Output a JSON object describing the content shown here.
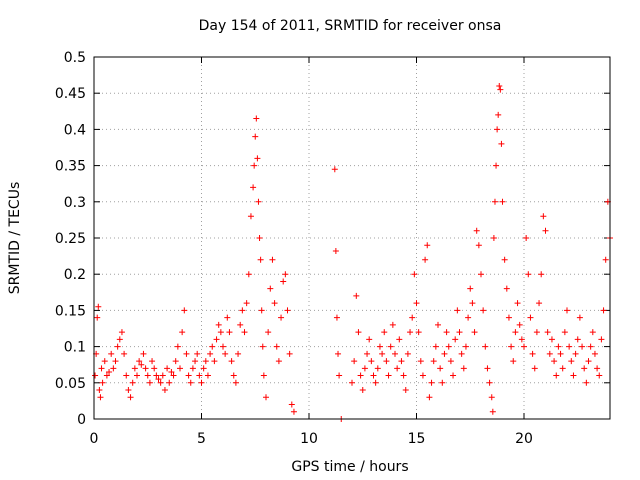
{
  "chart_data": {
    "type": "scatter",
    "title": "Day 154 of 2011, SRMTID for receiver onsa",
    "xlabel": "GPS time / hours",
    "ylabel": "SRMTID / TECUs",
    "xlim": [
      0,
      24
    ],
    "ylim": [
      0,
      0.5
    ],
    "xticks": [
      0,
      5,
      10,
      15,
      20
    ],
    "xtick_labels": [
      "0",
      "5",
      "10",
      "15",
      "20"
    ],
    "yticks": [
      0,
      0.05,
      0.1,
      0.15,
      0.2,
      0.25,
      0.3,
      0.35,
      0.4,
      0.45,
      0.5
    ],
    "ytick_labels": [
      "0",
      "0.05",
      "0.1",
      "0.15",
      "0.2",
      "0.25",
      "0.3",
      "0.35",
      "0.4",
      "0.45",
      "0.5"
    ],
    "grid": true,
    "marker": "+",
    "color": "#ff0000",
    "series": [
      {
        "name": "SRMTID",
        "points": [
          [
            0.05,
            0.06
          ],
          [
            0.1,
            0.09
          ],
          [
            0.15,
            0.14
          ],
          [
            0.2,
            0.155
          ],
          [
            0.25,
            0.04
          ],
          [
            0.3,
            0.03
          ],
          [
            0.35,
            0.07
          ],
          [
            0.4,
            0.05
          ],
          [
            0.5,
            0.08
          ],
          [
            0.6,
            0.06
          ],
          [
            0.7,
            0.065
          ],
          [
            0.8,
            0.09
          ],
          [
            0.9,
            0.07
          ],
          [
            1.0,
            0.08
          ],
          [
            1.1,
            0.1
          ],
          [
            1.2,
            0.11
          ],
          [
            1.3,
            0.12
          ],
          [
            1.4,
            0.09
          ],
          [
            1.5,
            0.06
          ],
          [
            1.6,
            0.04
          ],
          [
            1.7,
            0.03
          ],
          [
            1.8,
            0.05
          ],
          [
            1.9,
            0.07
          ],
          [
            2.0,
            0.06
          ],
          [
            2.1,
            0.08
          ],
          [
            2.2,
            0.075
          ],
          [
            2.3,
            0.09
          ],
          [
            2.4,
            0.07
          ],
          [
            2.5,
            0.06
          ],
          [
            2.6,
            0.05
          ],
          [
            2.7,
            0.08
          ],
          [
            2.8,
            0.07
          ],
          [
            2.9,
            0.06
          ],
          [
            3.0,
            0.055
          ],
          [
            3.1,
            0.05
          ],
          [
            3.2,
            0.06
          ],
          [
            3.3,
            0.04
          ],
          [
            3.4,
            0.07
          ],
          [
            3.5,
            0.05
          ],
          [
            3.6,
            0.065
          ],
          [
            3.7,
            0.06
          ],
          [
            3.8,
            0.08
          ],
          [
            3.9,
            0.1
          ],
          [
            4.0,
            0.07
          ],
          [
            4.1,
            0.12
          ],
          [
            4.2,
            0.15
          ],
          [
            4.3,
            0.09
          ],
          [
            4.4,
            0.06
          ],
          [
            4.5,
            0.05
          ],
          [
            4.6,
            0.07
          ],
          [
            4.7,
            0.08
          ],
          [
            4.8,
            0.09
          ],
          [
            4.9,
            0.06
          ],
          [
            5.0,
            0.05
          ],
          [
            5.1,
            0.07
          ],
          [
            5.2,
            0.08
          ],
          [
            5.3,
            0.06
          ],
          [
            5.4,
            0.09
          ],
          [
            5.5,
            0.1
          ],
          [
            5.6,
            0.08
          ],
          [
            5.7,
            0.11
          ],
          [
            5.8,
            0.13
          ],
          [
            5.9,
            0.12
          ],
          [
            6.0,
            0.1
          ],
          [
            6.1,
            0.09
          ],
          [
            6.2,
            0.14
          ],
          [
            6.3,
            0.12
          ],
          [
            6.4,
            0.08
          ],
          [
            6.5,
            0.06
          ],
          [
            6.6,
            0.05
          ],
          [
            6.7,
            0.09
          ],
          [
            6.8,
            0.13
          ],
          [
            6.9,
            0.15
          ],
          [
            7.0,
            0.12
          ],
          [
            7.1,
            0.16
          ],
          [
            7.2,
            0.2
          ],
          [
            7.3,
            0.28
          ],
          [
            7.4,
            0.32
          ],
          [
            7.45,
            0.35
          ],
          [
            7.5,
            0.39
          ],
          [
            7.55,
            0.415
          ],
          [
            7.6,
            0.36
          ],
          [
            7.65,
            0.3
          ],
          [
            7.7,
            0.25
          ],
          [
            7.75,
            0.22
          ],
          [
            7.8,
            0.15
          ],
          [
            7.85,
            0.1
          ],
          [
            7.9,
            0.06
          ],
          [
            8.0,
            0.03
          ],
          [
            8.1,
            0.12
          ],
          [
            8.2,
            0.18
          ],
          [
            8.3,
            0.22
          ],
          [
            8.4,
            0.16
          ],
          [
            8.5,
            0.1
          ],
          [
            8.6,
            0.08
          ],
          [
            8.7,
            0.14
          ],
          [
            8.8,
            0.19
          ],
          [
            8.9,
            0.2
          ],
          [
            9.0,
            0.15
          ],
          [
            9.1,
            0.09
          ],
          [
            9.2,
            0.02
          ],
          [
            9.3,
            0.01
          ],
          [
            11.2,
            0.345
          ],
          [
            11.25,
            0.232
          ],
          [
            11.3,
            0.14
          ],
          [
            11.35,
            0.09
          ],
          [
            11.4,
            0.06
          ],
          [
            11.5,
            0.0
          ],
          [
            12.0,
            0.05
          ],
          [
            12.1,
            0.08
          ],
          [
            12.2,
            0.17
          ],
          [
            12.3,
            0.12
          ],
          [
            12.4,
            0.06
          ],
          [
            12.5,
            0.04
          ],
          [
            12.6,
            0.07
          ],
          [
            12.7,
            0.09
          ],
          [
            12.8,
            0.11
          ],
          [
            12.9,
            0.08
          ],
          [
            13.0,
            0.06
          ],
          [
            13.1,
            0.05
          ],
          [
            13.2,
            0.07
          ],
          [
            13.3,
            0.1
          ],
          [
            13.4,
            0.09
          ],
          [
            13.5,
            0.12
          ],
          [
            13.6,
            0.08
          ],
          [
            13.7,
            0.06
          ],
          [
            13.8,
            0.1
          ],
          [
            13.9,
            0.13
          ],
          [
            14.0,
            0.09
          ],
          [
            14.1,
            0.07
          ],
          [
            14.2,
            0.11
          ],
          [
            14.3,
            0.08
          ],
          [
            14.4,
            0.06
          ],
          [
            14.5,
            0.04
          ],
          [
            14.6,
            0.09
          ],
          [
            14.7,
            0.12
          ],
          [
            14.8,
            0.14
          ],
          [
            14.9,
            0.2
          ],
          [
            15.0,
            0.16
          ],
          [
            15.1,
            0.12
          ],
          [
            15.2,
            0.08
          ],
          [
            15.3,
            0.06
          ],
          [
            15.4,
            0.22
          ],
          [
            15.5,
            0.24
          ],
          [
            15.6,
            0.03
          ],
          [
            15.7,
            0.05
          ],
          [
            15.8,
            0.08
          ],
          [
            15.9,
            0.1
          ],
          [
            16.0,
            0.13
          ],
          [
            16.1,
            0.07
          ],
          [
            16.2,
            0.05
          ],
          [
            16.3,
            0.09
          ],
          [
            16.4,
            0.12
          ],
          [
            16.5,
            0.1
          ],
          [
            16.6,
            0.08
          ],
          [
            16.7,
            0.06
          ],
          [
            16.8,
            0.11
          ],
          [
            16.9,
            0.15
          ],
          [
            17.0,
            0.12
          ],
          [
            17.1,
            0.09
          ],
          [
            17.2,
            0.07
          ],
          [
            17.3,
            0.1
          ],
          [
            17.4,
            0.14
          ],
          [
            17.5,
            0.18
          ],
          [
            17.6,
            0.16
          ],
          [
            17.7,
            0.12
          ],
          [
            17.8,
            0.26
          ],
          [
            17.9,
            0.24
          ],
          [
            18.0,
            0.2
          ],
          [
            18.1,
            0.15
          ],
          [
            18.2,
            0.1
          ],
          [
            18.3,
            0.07
          ],
          [
            18.4,
            0.05
          ],
          [
            18.5,
            0.03
          ],
          [
            18.55,
            0.01
          ],
          [
            18.6,
            0.25
          ],
          [
            18.65,
            0.3
          ],
          [
            18.7,
            0.35
          ],
          [
            18.75,
            0.4
          ],
          [
            18.8,
            0.42
          ],
          [
            18.85,
            0.46
          ],
          [
            18.9,
            0.455
          ],
          [
            18.95,
            0.38
          ],
          [
            19.0,
            0.3
          ],
          [
            19.1,
            0.22
          ],
          [
            19.2,
            0.18
          ],
          [
            19.3,
            0.14
          ],
          [
            19.4,
            0.1
          ],
          [
            19.5,
            0.08
          ],
          [
            19.6,
            0.12
          ],
          [
            19.7,
            0.16
          ],
          [
            19.8,
            0.13
          ],
          [
            19.9,
            0.11
          ],
          [
            20.0,
            0.1
          ],
          [
            20.1,
            0.25
          ],
          [
            20.2,
            0.2
          ],
          [
            20.3,
            0.14
          ],
          [
            20.4,
            0.09
          ],
          [
            20.5,
            0.07
          ],
          [
            20.6,
            0.12
          ],
          [
            20.7,
            0.16
          ],
          [
            20.8,
            0.2
          ],
          [
            20.9,
            0.28
          ],
          [
            21.0,
            0.26
          ],
          [
            21.1,
            0.12
          ],
          [
            21.2,
            0.09
          ],
          [
            21.3,
            0.11
          ],
          [
            21.4,
            0.08
          ],
          [
            21.5,
            0.06
          ],
          [
            21.6,
            0.1
          ],
          [
            21.7,
            0.09
          ],
          [
            21.8,
            0.07
          ],
          [
            21.9,
            0.12
          ],
          [
            22.0,
            0.15
          ],
          [
            22.1,
            0.1
          ],
          [
            22.2,
            0.08
          ],
          [
            22.3,
            0.06
          ],
          [
            22.4,
            0.09
          ],
          [
            22.5,
            0.11
          ],
          [
            22.6,
            0.14
          ],
          [
            22.7,
            0.1
          ],
          [
            22.8,
            0.07
          ],
          [
            22.9,
            0.05
          ],
          [
            23.0,
            0.08
          ],
          [
            23.1,
            0.1
          ],
          [
            23.2,
            0.12
          ],
          [
            23.3,
            0.09
          ],
          [
            23.4,
            0.07
          ],
          [
            23.5,
            0.06
          ],
          [
            23.6,
            0.11
          ],
          [
            23.7,
            0.15
          ],
          [
            23.8,
            0.22
          ],
          [
            23.9,
            0.3
          ],
          [
            24.0,
            0.25
          ]
        ]
      }
    ]
  }
}
